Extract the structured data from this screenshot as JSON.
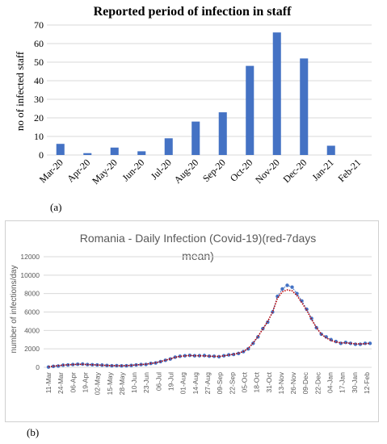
{
  "panel_a_label": "(a)",
  "panel_b_label": "(b)",
  "chart_data": [
    {
      "type": "bar",
      "title": "Reported period of infection in staff",
      "xlabel": "",
      "ylabel": "no of infected staff",
      "categories": [
        "Mar-20",
        "Apr-20",
        "May-20",
        "Jun-20",
        "Jul-20",
        "Aug-20",
        "Sep-20",
        "Oct-20",
        "Nov-20",
        "Dec-20",
        "Jan-21",
        "Feb-21"
      ],
      "values": [
        6,
        1,
        4,
        2,
        9,
        18,
        23,
        48,
        66,
        52,
        5,
        0
      ],
      "ylim": [
        0,
        70
      ],
      "yticks": [
        0,
        10,
        20,
        30,
        40,
        50,
        60,
        70
      ],
      "grid": true,
      "colors": {
        "bar": "#4472c4",
        "grid": "#d9d9d9",
        "text": "#000000"
      }
    },
    {
      "type": "line",
      "title": "Romania - Daily Infection (Covid-19)(red-7days mean)",
      "xlabel": "",
      "ylabel": "number of infections/day",
      "ylim": [
        0,
        12000
      ],
      "yticks": [
        0,
        2000,
        4000,
        6000,
        8000,
        10000,
        12000
      ],
      "x_tick_labels": [
        "11-Mar",
        "24-Mar",
        "06-Apr",
        "19-Apr",
        "02-May",
        "15-May",
        "28-May",
        "10-Jun",
        "23-Jun",
        "06-Jul",
        "19-Jul",
        "01-Aug",
        "14-Aug",
        "27-Aug",
        "09-Sep",
        "22-Sep",
        "05-Oct",
        "18-Oct",
        "31-Oct",
        "13-Nov",
        "26-Nov",
        "09-Dec",
        "22-Dec",
        "04-Jan",
        "17-Jan",
        "30-Jan",
        "12-Feb"
      ],
      "grid": true,
      "colors": {
        "daily": "#4472c4",
        "mean": "#c00000",
        "grid": "#d9d9d9",
        "text": "#595959"
      },
      "series": [
        {
          "values": [
            30,
            100,
            140,
            230,
            260,
            300,
            330,
            350,
            300,
            280,
            260,
            240,
            200,
            170,
            180,
            160,
            170,
            200,
            260,
            300,
            310,
            420,
            480,
            620,
            760,
            900,
            1100,
            1200,
            1250,
            1300,
            1250,
            1260,
            1280,
            1210,
            1200,
            1150,
            1250,
            1350,
            1400,
            1500,
            1700,
            2000,
            2600,
            3300,
            4200,
            4900,
            6000,
            7700,
            8500,
            8900,
            8700,
            8000,
            7200,
            6300,
            5300,
            4300,
            3600,
            3300,
            3000,
            2800,
            2600,
            2700,
            2600,
            2500,
            2500,
            2600,
            2600
          ],
          "note_on_x": "one sampled value per ~5 days from 11-Mar to ~17-Feb"
        },
        {
          "values": [
            50,
            120,
            180,
            240,
            280,
            300,
            320,
            320,
            300,
            280,
            250,
            230,
            200,
            180,
            175,
            170,
            180,
            210,
            260,
            300,
            330,
            420,
            500,
            630,
            770,
            910,
            1090,
            1180,
            1240,
            1280,
            1260,
            1250,
            1240,
            1210,
            1190,
            1180,
            1240,
            1330,
            1420,
            1530,
            1720,
            2050,
            2650,
            3350,
            4150,
            5000,
            6000,
            7500,
            8200,
            8400,
            8300,
            7800,
            7000,
            6200,
            5200,
            4300,
            3600,
            3200,
            2900,
            2750,
            2650,
            2650,
            2600,
            2550,
            2550,
            2550,
            2600
          ]
        }
      ]
    }
  ]
}
